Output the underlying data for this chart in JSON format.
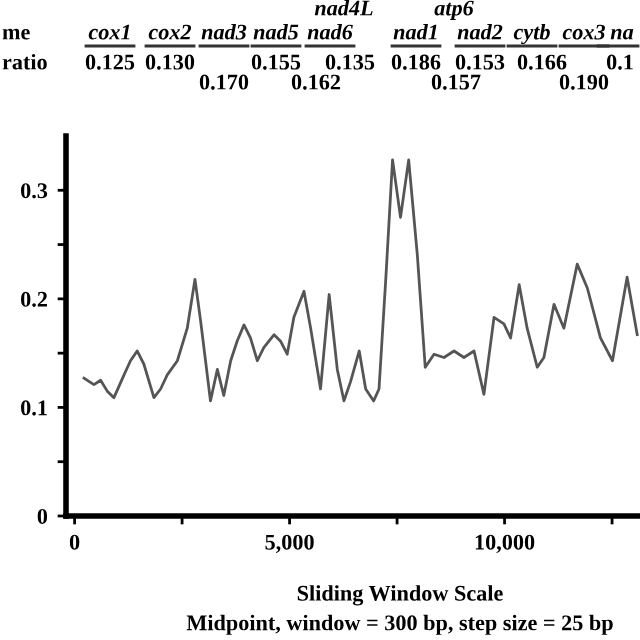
{
  "chart_data": {
    "type": "line",
    "xlabel": "Sliding Window Scale\nMidpoint, window = 300 bp, step size = 25 bp",
    "x": [
      218,
      450,
      605,
      760,
      915,
      1150,
      1300,
      1455,
      1610,
      1845,
      2000,
      2155,
      2390,
      2620,
      2800,
      2930,
      3160,
      3320,
      3470,
      3630,
      3780,
      3940,
      4090,
      4250,
      4400,
      4640,
      4790,
      4945,
      5100,
      5335,
      5490,
      5720,
      5920,
      6110,
      6265,
      6420,
      6620,
      6770,
      6955,
      7080,
      7240,
      7395,
      7580,
      7770,
      7970,
      8155,
      8360,
      8590,
      8825,
      9055,
      9290,
      9520,
      9755,
      9985,
      10140,
      10340,
      10525,
      10760,
      10915,
      11150,
      11380,
      11690,
      11925,
      12230,
      12510,
      12850,
      13085
    ],
    "series": [
      {
        "color": "#555555",
        "values": [
          0.127,
          0.121,
          0.125,
          0.115,
          0.109,
          0.13,
          0.143,
          0.152,
          0.14,
          0.109,
          0.117,
          0.13,
          0.143,
          0.173,
          0.218,
          0.18,
          0.106,
          0.135,
          0.111,
          0.143,
          0.161,
          0.176,
          0.164,
          0.143,
          0.155,
          0.167,
          0.161,
          0.149,
          0.183,
          0.207,
          0.173,
          0.117,
          0.204,
          0.135,
          0.106,
          0.124,
          0.152,
          0.117,
          0.106,
          0.117,
          0.22,
          0.328,
          0.275,
          0.328,
          0.241,
          0.137,
          0.149,
          0.146,
          0.152,
          0.146,
          0.152,
          0.112,
          0.183,
          0.177,
          0.164,
          0.213,
          0.173,
          0.137,
          0.146,
          0.195,
          0.173,
          0.232,
          0.21,
          0.164,
          0.143,
          0.22,
          0.167
        ]
      }
    ],
    "xlim": [
      -200,
      13150
    ],
    "ylim": [
      0,
      0.35
    ],
    "xticks": [
      0,
      {
        "value": 2500,
        "label": null
      },
      {
        "value": 5000,
        "label": "5,000"
      },
      {
        "value": 7500,
        "label": null
      },
      {
        "value": 10000,
        "label": "10,000"
      },
      {
        "value": 12500,
        "label": null
      }
    ],
    "yticks": [
      0,
      {
        "value": 0.05,
        "label": null
      },
      0.1,
      {
        "value": 0.15,
        "label": null
      },
      0.2,
      {
        "value": 0.25,
        "label": null
      },
      0.3
    ],
    "grid": false,
    "legend": false,
    "marker": "none",
    "line_style": "solid",
    "annotations": [
      "me",
      "ratio",
      "cox1",
      "cox2",
      "nad3",
      "nad5",
      "nad6",
      "nad4L",
      "nad1",
      "atp6",
      "nad2",
      "cytb",
      "cox3",
      "na",
      "0.125",
      "0.130",
      "0.170",
      "0.155",
      "0.162",
      "0.135",
      "0.186",
      "0.157",
      "0.153",
      "0.166",
      "0.190",
      "0.1"
    ]
  }
}
